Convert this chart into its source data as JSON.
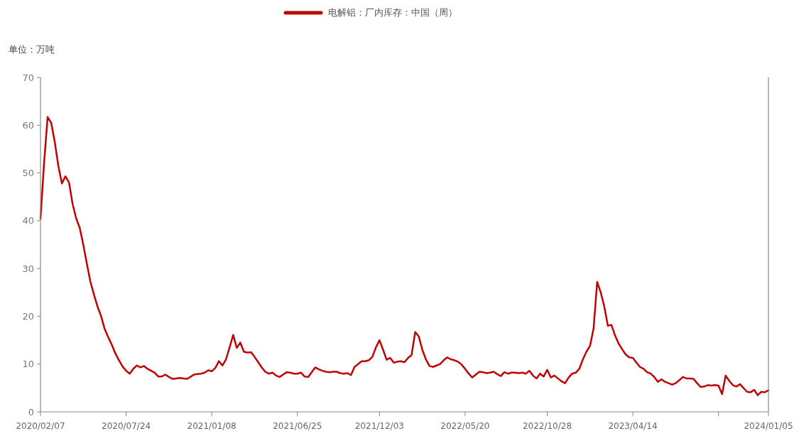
{
  "chart_data": {
    "type": "line",
    "ylabel": "单位：万吨",
    "legend": "top",
    "grid": false,
    "line_style": "solid",
    "xlim": [
      "2020-02-07",
      "2024-01-05"
    ],
    "xticks": [
      {
        "value": "2020-02-07",
        "label": "2020/02/07"
      },
      {
        "value": "2020-07-24",
        "label": "2020/07/24"
      },
      {
        "value": "2021-01-08",
        "label": "2021/01/08"
      },
      {
        "value": "2021-06-25",
        "label": "2021/06/25"
      },
      {
        "value": "2021-12-03",
        "label": "2021/12/03"
      },
      {
        "value": "2022-05-20",
        "label": "2022/05/20"
      },
      {
        "value": "2022-10-28",
        "label": "2022/10/28"
      },
      {
        "value": "2023-04-14",
        "label": "2023/04/14"
      },
      {
        "value": "2023-09-29",
        "label": null
      },
      {
        "value": "2024-01-05",
        "label": "2024/01/05"
      }
    ],
    "ylim": [
      0,
      70
    ],
    "yticks": [
      0,
      10,
      20,
      30,
      40,
      50,
      60,
      70
    ],
    "x": [
      "2020-02-07",
      "2020-02-14",
      "2020-02-21",
      "2020-02-28",
      "2020-03-06",
      "2020-03-13",
      "2020-03-20",
      "2020-03-27",
      "2020-04-03",
      "2020-04-10",
      "2020-04-17",
      "2020-04-24",
      "2020-05-01",
      "2020-05-08",
      "2020-05-15",
      "2020-05-22",
      "2020-05-29",
      "2020-06-05",
      "2020-06-12",
      "2020-06-19",
      "2020-06-26",
      "2020-07-03",
      "2020-07-10",
      "2020-07-17",
      "2020-07-24",
      "2020-07-31",
      "2020-08-07",
      "2020-08-14",
      "2020-08-21",
      "2020-08-28",
      "2020-09-04",
      "2020-09-11",
      "2020-09-18",
      "2020-09-25",
      "2020-10-02",
      "2020-10-09",
      "2020-10-16",
      "2020-10-23",
      "2020-10-30",
      "2020-11-06",
      "2020-11-13",
      "2020-11-20",
      "2020-11-27",
      "2020-12-04",
      "2020-12-11",
      "2020-12-18",
      "2020-12-25",
      "2021-01-01",
      "2021-01-08",
      "2021-01-15",
      "2021-01-22",
      "2021-01-29",
      "2021-02-05",
      "2021-02-12",
      "2021-02-19",
      "2021-02-26",
      "2021-03-05",
      "2021-03-12",
      "2021-03-19",
      "2021-03-26",
      "2021-04-02",
      "2021-04-09",
      "2021-04-16",
      "2021-04-23",
      "2021-04-30",
      "2021-05-07",
      "2021-05-14",
      "2021-05-21",
      "2021-05-28",
      "2021-06-04",
      "2021-06-11",
      "2021-06-18",
      "2021-06-25",
      "2021-07-02",
      "2021-07-09",
      "2021-07-16",
      "2021-07-23",
      "2021-07-30",
      "2021-08-06",
      "2021-08-13",
      "2021-08-20",
      "2021-08-27",
      "2021-09-03",
      "2021-09-10",
      "2021-09-17",
      "2021-09-24",
      "2021-10-01",
      "2021-10-08",
      "2021-10-15",
      "2021-10-22",
      "2021-10-29",
      "2021-11-05",
      "2021-11-12",
      "2021-11-19",
      "2021-11-26",
      "2021-12-03",
      "2021-12-10",
      "2021-12-17",
      "2021-12-24",
      "2021-12-31",
      "2022-01-07",
      "2022-01-14",
      "2022-01-21",
      "2022-01-28",
      "2022-02-04",
      "2022-02-11",
      "2022-02-18",
      "2022-02-25",
      "2022-03-04",
      "2022-03-11",
      "2022-03-18",
      "2022-03-25",
      "2022-04-01",
      "2022-04-08",
      "2022-04-15",
      "2022-04-22",
      "2022-04-29",
      "2022-05-06",
      "2022-05-13",
      "2022-05-20",
      "2022-05-27",
      "2022-06-03",
      "2022-06-10",
      "2022-06-17",
      "2022-06-24",
      "2022-07-01",
      "2022-07-08",
      "2022-07-15",
      "2022-07-22",
      "2022-07-29",
      "2022-08-05",
      "2022-08-12",
      "2022-08-19",
      "2022-08-26",
      "2022-09-02",
      "2022-09-09",
      "2022-09-16",
      "2022-09-23",
      "2022-09-30",
      "2022-10-07",
      "2022-10-14",
      "2022-10-21",
      "2022-10-28",
      "2022-11-04",
      "2022-11-11",
      "2022-11-18",
      "2022-11-25",
      "2022-12-02",
      "2022-12-09",
      "2022-12-16",
      "2022-12-23",
      "2022-12-30",
      "2023-01-06",
      "2023-01-13",
      "2023-01-20",
      "2023-01-27",
      "2023-02-03",
      "2023-02-10",
      "2023-02-17",
      "2023-02-24",
      "2023-03-03",
      "2023-03-10",
      "2023-03-17",
      "2023-03-24",
      "2023-03-31",
      "2023-04-07",
      "2023-04-14",
      "2023-04-21",
      "2023-04-28",
      "2023-05-05",
      "2023-05-12",
      "2023-05-19",
      "2023-05-26",
      "2023-06-02",
      "2023-06-09",
      "2023-06-16",
      "2023-06-23",
      "2023-06-30",
      "2023-07-07",
      "2023-07-14",
      "2023-07-21",
      "2023-07-28",
      "2023-08-04",
      "2023-08-11",
      "2023-08-18",
      "2023-08-25",
      "2023-09-01",
      "2023-09-08",
      "2023-09-15",
      "2023-09-22",
      "2023-09-29",
      "2023-10-06",
      "2023-10-13",
      "2023-10-20",
      "2023-10-27",
      "2023-11-03",
      "2023-11-10",
      "2023-11-17",
      "2023-11-24",
      "2023-12-01",
      "2023-12-08",
      "2023-12-15",
      "2023-12-22",
      "2023-12-29",
      "2024-01-05"
    ],
    "series": [
      {
        "name": "电解铝：厂内库存：中国（周）",
        "color": "#c00000",
        "values": [
          40.4,
          52,
          61.7,
          60.5,
          56.5,
          51.5,
          47.8,
          49.3,
          48.0,
          43.5,
          40.5,
          38.5,
          35,
          31,
          27.2,
          24.5,
          22,
          20,
          17.3,
          15.6,
          14,
          12.2,
          10.8,
          9.5,
          8.6,
          8.0,
          9.0,
          9.7,
          9.3,
          9.6,
          9.0,
          8.6,
          8.2,
          7.4,
          7.4,
          7.8,
          7.3,
          6.9,
          7.0,
          7.1,
          7.0,
          6.9,
          7.3,
          7.8,
          7.9,
          8.0,
          8.2,
          8.7,
          8.5,
          9.2,
          10.6,
          9.7,
          11.0,
          13.5,
          16.1,
          13.4,
          14.5,
          12.6,
          12.4,
          12.5,
          11.5,
          10.4,
          9.3,
          8.4,
          8.0,
          8.2,
          7.6,
          7.3,
          7.8,
          8.3,
          8.2,
          8.0,
          8.0,
          8.2,
          7.4,
          7.3,
          8.3,
          9.3,
          8.9,
          8.6,
          8.4,
          8.3,
          8.4,
          8.4,
          8.1,
          8.0,
          8.1,
          7.7,
          9.4,
          10.0,
          10.6,
          10.6,
          10.8,
          11.5,
          13.5,
          15.0,
          13.0,
          10.9,
          11.3,
          10.3,
          10.5,
          10.6,
          10.4,
          11.3,
          11.9,
          16.7,
          15.8,
          13.0,
          11.0,
          9.6,
          9.4,
          9.7,
          10.0,
          10.8,
          11.4,
          11.0,
          10.8,
          10.5,
          9.9,
          9.0,
          8.0,
          7.2,
          7.8,
          8.4,
          8.3,
          8.1,
          8.2,
          8.4,
          7.9,
          7.5,
          8.3,
          8.0,
          8.2,
          8.2,
          8.1,
          8.2,
          8.0,
          8.6,
          7.6,
          7.0,
          8.0,
          7.4,
          8.8,
          7.2,
          7.6,
          7.0,
          6.4,
          6.0,
          7.2,
          8.0,
          8.2,
          9.0,
          11.0,
          12.6,
          13.8,
          17.5,
          27.2,
          25.0,
          22.0,
          18.0,
          18.2,
          16.0,
          14.3,
          13.1,
          12.0,
          11.4,
          11.3,
          10.3,
          9.4,
          9.0,
          8.3,
          8.0,
          7.3,
          6.3,
          6.8,
          6.3,
          6.0,
          5.7,
          6.0,
          6.6,
          7.3,
          7.0,
          7.0,
          6.9,
          6.0,
          5.2,
          5.3,
          5.6,
          5.5,
          5.6,
          5.5,
          3.7,
          7.6,
          6.5,
          5.6,
          5.3,
          5.8,
          5.0,
          4.2,
          4.1,
          4.6,
          3.5,
          4.2,
          4.1,
          4.5
        ]
      }
    ]
  }
}
